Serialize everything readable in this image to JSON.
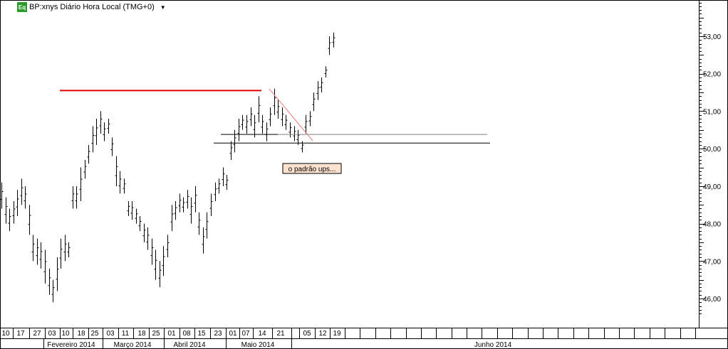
{
  "header": {
    "badge": "Eq",
    "title": "BP:xnys Diário Hora Local (TMG+0)",
    "dropdown_icon": "▼"
  },
  "annotation": {
    "text": "o padrão ups..."
  },
  "colors": {
    "resistance_line": "#e00000",
    "trend_line": "#f08080",
    "level_line": "#808080",
    "annotation_bg": "#fde3cf"
  },
  "chart_data": {
    "type": "ohlc-bar",
    "title": "",
    "y_axis": {
      "ticks": [
        "46,00",
        "47,00",
        "48,00",
        "49,00",
        "50,00",
        "51,00",
        "52,00",
        "53,00"
      ],
      "ylim": [
        45.6,
        53.9
      ]
    },
    "x_axis": {
      "day_labels": [
        "10",
        "17",
        "27",
        "03",
        "10",
        "18",
        "25",
        "03",
        "11",
        "18",
        "25",
        "01",
        "08",
        "15",
        "23",
        "01",
        "07",
        "14",
        "21",
        "05",
        "12",
        "19"
      ],
      "month_labels": [
        "Fevereiro 2014",
        "Março 2014",
        "Abril 2014",
        "Maio 2014",
        "Junho 2014"
      ]
    },
    "bars": [
      [
        48.4,
        49.1
      ],
      [
        48.0,
        48.7
      ],
      [
        47.8,
        48.4
      ],
      [
        48.0,
        48.6
      ],
      [
        48.2,
        48.9
      ],
      [
        48.5,
        49.2
      ],
      [
        48.4,
        49.0
      ],
      [
        47.7,
        48.5
      ],
      [
        47.0,
        47.7
      ],
      [
        46.9,
        47.6
      ],
      [
        46.8,
        47.5
      ],
      [
        46.4,
        47.3
      ],
      [
        46.1,
        46.8
      ],
      [
        45.9,
        46.5
      ],
      [
        46.2,
        47.1
      ],
      [
        46.8,
        47.6
      ],
      [
        47.0,
        47.7
      ],
      [
        47.1,
        47.5
      ],
      [
        48.4,
        49.0
      ],
      [
        48.4,
        49.0
      ],
      [
        48.6,
        49.5
      ],
      [
        49.2,
        49.7
      ],
      [
        49.6,
        50.1
      ],
      [
        49.9,
        50.6
      ],
      [
        50.1,
        50.8
      ],
      [
        50.4,
        51.0
      ],
      [
        50.2,
        50.7
      ],
      [
        50.4,
        50.8
      ],
      [
        49.8,
        50.3
      ],
      [
        49.0,
        49.8
      ],
      [
        48.8,
        49.4
      ],
      [
        48.8,
        49.2
      ],
      [
        48.2,
        48.6
      ],
      [
        48.1,
        48.6
      ],
      [
        48.0,
        48.4
      ],
      [
        47.8,
        48.2
      ],
      [
        47.5,
        48.0
      ],
      [
        47.3,
        47.9
      ],
      [
        46.9,
        47.6
      ],
      [
        46.5,
        47.3
      ],
      [
        46.3,
        47.0
      ],
      [
        46.6,
        47.4
      ],
      [
        47.1,
        47.7
      ],
      [
        47.8,
        48.5
      ],
      [
        48.1,
        48.6
      ],
      [
        48.3,
        48.8
      ],
      [
        48.3,
        48.7
      ],
      [
        48.4,
        48.9
      ],
      [
        48.0,
        48.7
      ],
      [
        48.3,
        49.0
      ],
      [
        47.7,
        48.3
      ],
      [
        47.2,
        47.9
      ],
      [
        47.6,
        48.3
      ],
      [
        48.2,
        48.8
      ],
      [
        48.6,
        49.1
      ],
      [
        48.8,
        49.2
      ],
      [
        49.0,
        49.5
      ],
      [
        48.9,
        49.3
      ],
      [
        49.7,
        50.2
      ],
      [
        49.9,
        50.5
      ],
      [
        50.2,
        50.8
      ],
      [
        50.5,
        50.9
      ],
      [
        50.4,
        50.9
      ],
      [
        50.6,
        51.1
      ],
      [
        50.3,
        50.9
      ],
      [
        50.7,
        51.4
      ],
      [
        50.4,
        50.9
      ],
      [
        50.2,
        50.7
      ],
      [
        50.6,
        51.1
      ],
      [
        50.9,
        51.6
      ],
      [
        50.8,
        51.3
      ],
      [
        50.6,
        51.1
      ],
      [
        50.5,
        50.9
      ],
      [
        50.3,
        50.7
      ],
      [
        50.2,
        50.6
      ],
      [
        50.1,
        50.5
      ],
      [
        49.9,
        50.2
      ],
      [
        50.4,
        50.9
      ],
      [
        50.6,
        51.0
      ],
      [
        51.0,
        51.5
      ],
      [
        51.3,
        51.8
      ],
      [
        51.5,
        51.9
      ],
      [
        51.9,
        52.2
      ],
      [
        52.5,
        53.0
      ],
      [
        52.7,
        53.1
      ]
    ],
    "reference_lines": [
      {
        "name": "resistance",
        "y": 51.55
      },
      {
        "name": "level",
        "y": 50.38
      },
      {
        "name": "support",
        "y": 50.15
      }
    ]
  }
}
